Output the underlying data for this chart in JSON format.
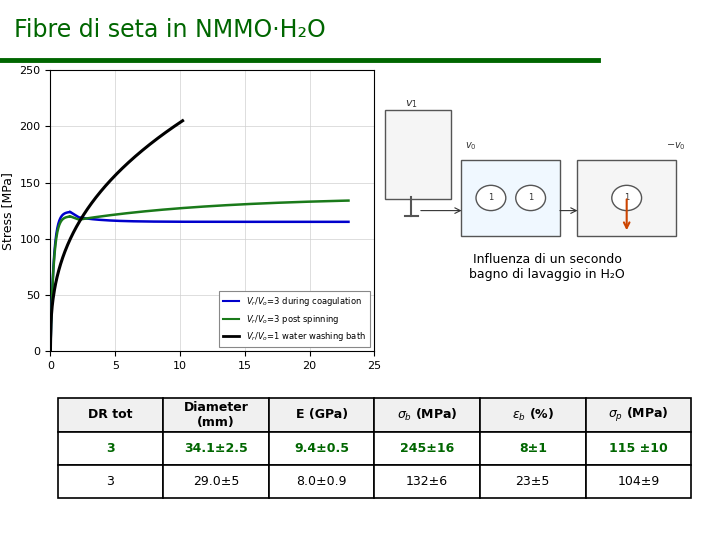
{
  "title": "Fibre di seta in NMMO·H₂O",
  "title_color": "#006600",
  "plot_ylabel": "Stress [MPa]",
  "plot_ylim": [
    0,
    250
  ],
  "plot_xlim": [
    0,
    25
  ],
  "plot_xticks": [
    0,
    5,
    10,
    15,
    20,
    25
  ],
  "plot_yticks": [
    0,
    50,
    100,
    150,
    200,
    250
  ],
  "legend_colors": [
    "#0000cc",
    "#1a7a1a",
    "#000000"
  ],
  "legend_labels": [
    "V_r/V_o=3 during coagulation",
    "V_r/V_o=3 post spinning",
    "V_r/V_o=1 water washing bath"
  ],
  "subtitle_line1": "Influenza di un secondo bagno",
  "subtitle_line2": "di lavaggio in H₂O",
  "table_col_headers": [
    "DR tot",
    "Diameter\n(mm)",
    "E (GPa)",
    "σb (MPa)",
    "εb (%)",
    "σp (MPa)"
  ],
  "table_row1": [
    "3",
    "34.1±2.5",
    "9.4±0.5",
    "245±16",
    "8±1",
    "115 ±10"
  ],
  "table_row2": [
    "3",
    "29.0±5",
    "8.0±0.9",
    "132±6",
    "23±5",
    "104±9"
  ],
  "table_row1_color": "#006600",
  "green_bar_color": "#006600",
  "black_color": "#000000"
}
